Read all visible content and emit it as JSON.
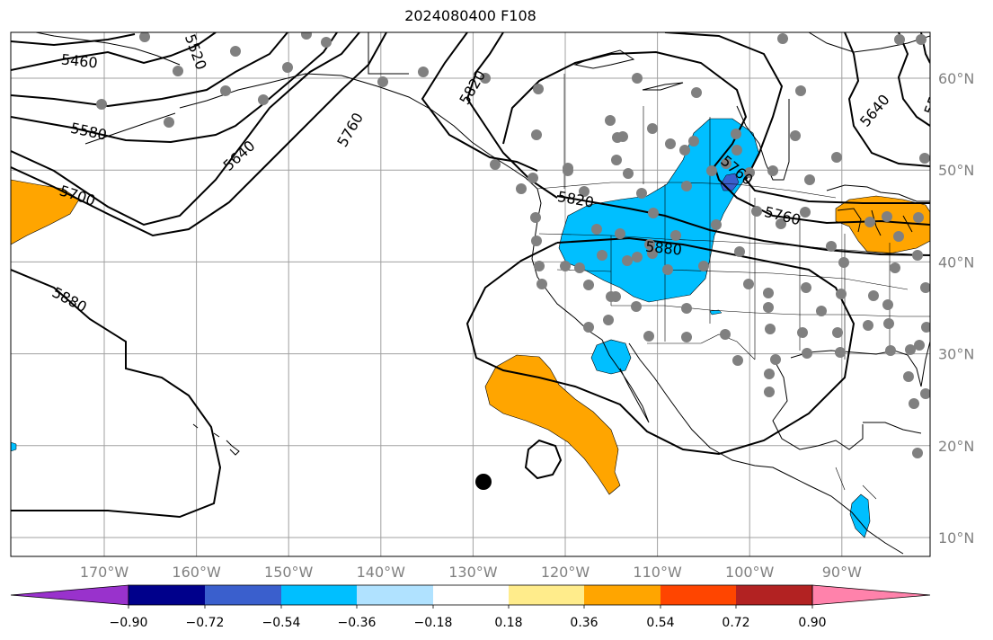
{
  "title": "2024080400 F108",
  "map": {
    "lon_range": [
      -180,
      -80
    ],
    "lat_range": [
      8,
      65
    ],
    "lat_ticks": [
      {
        "value": 60,
        "label": "60°N"
      },
      {
        "value": 50,
        "label": "50°N"
      },
      {
        "value": 40,
        "label": "40°N"
      },
      {
        "value": 30,
        "label": "30°N"
      },
      {
        "value": 20,
        "label": "20°N"
      },
      {
        "value": 10,
        "label": "10°N"
      }
    ],
    "lon_ticks": [
      {
        "value": -170,
        "label": "170°W"
      },
      {
        "value": -160,
        "label": "160°W"
      },
      {
        "value": -150,
        "label": "150°W"
      },
      {
        "value": -140,
        "label": "140°W"
      },
      {
        "value": -130,
        "label": "130°W"
      },
      {
        "value": -120,
        "label": "120°W"
      },
      {
        "value": -110,
        "label": "110°W"
      },
      {
        "value": -100,
        "label": "100°W"
      },
      {
        "value": -90,
        "label": "90°W"
      }
    ],
    "contour_labels": [
      "5460",
      "5520",
      "5580",
      "5640",
      "5700",
      "5760",
      "5820",
      "5880"
    ],
    "colors": {
      "land_line": "#000000",
      "grid": "#a0a0a0",
      "station": "#808080"
    }
  },
  "colorbar": {
    "colors": [
      "#9932cc",
      "#00008b",
      "#3a5fcd",
      "#00bfff",
      "#b0e2ff",
      "#ffffff",
      "#ffec8b",
      "#ffa500",
      "#ff4500",
      "#b22222",
      "#ff82ab"
    ],
    "tick_labels": [
      "−0.90",
      "−0.72",
      "−0.54",
      "−0.36",
      "−0.18",
      "0.18",
      "0.36",
      "0.54",
      "0.72",
      "0.90"
    ]
  }
}
